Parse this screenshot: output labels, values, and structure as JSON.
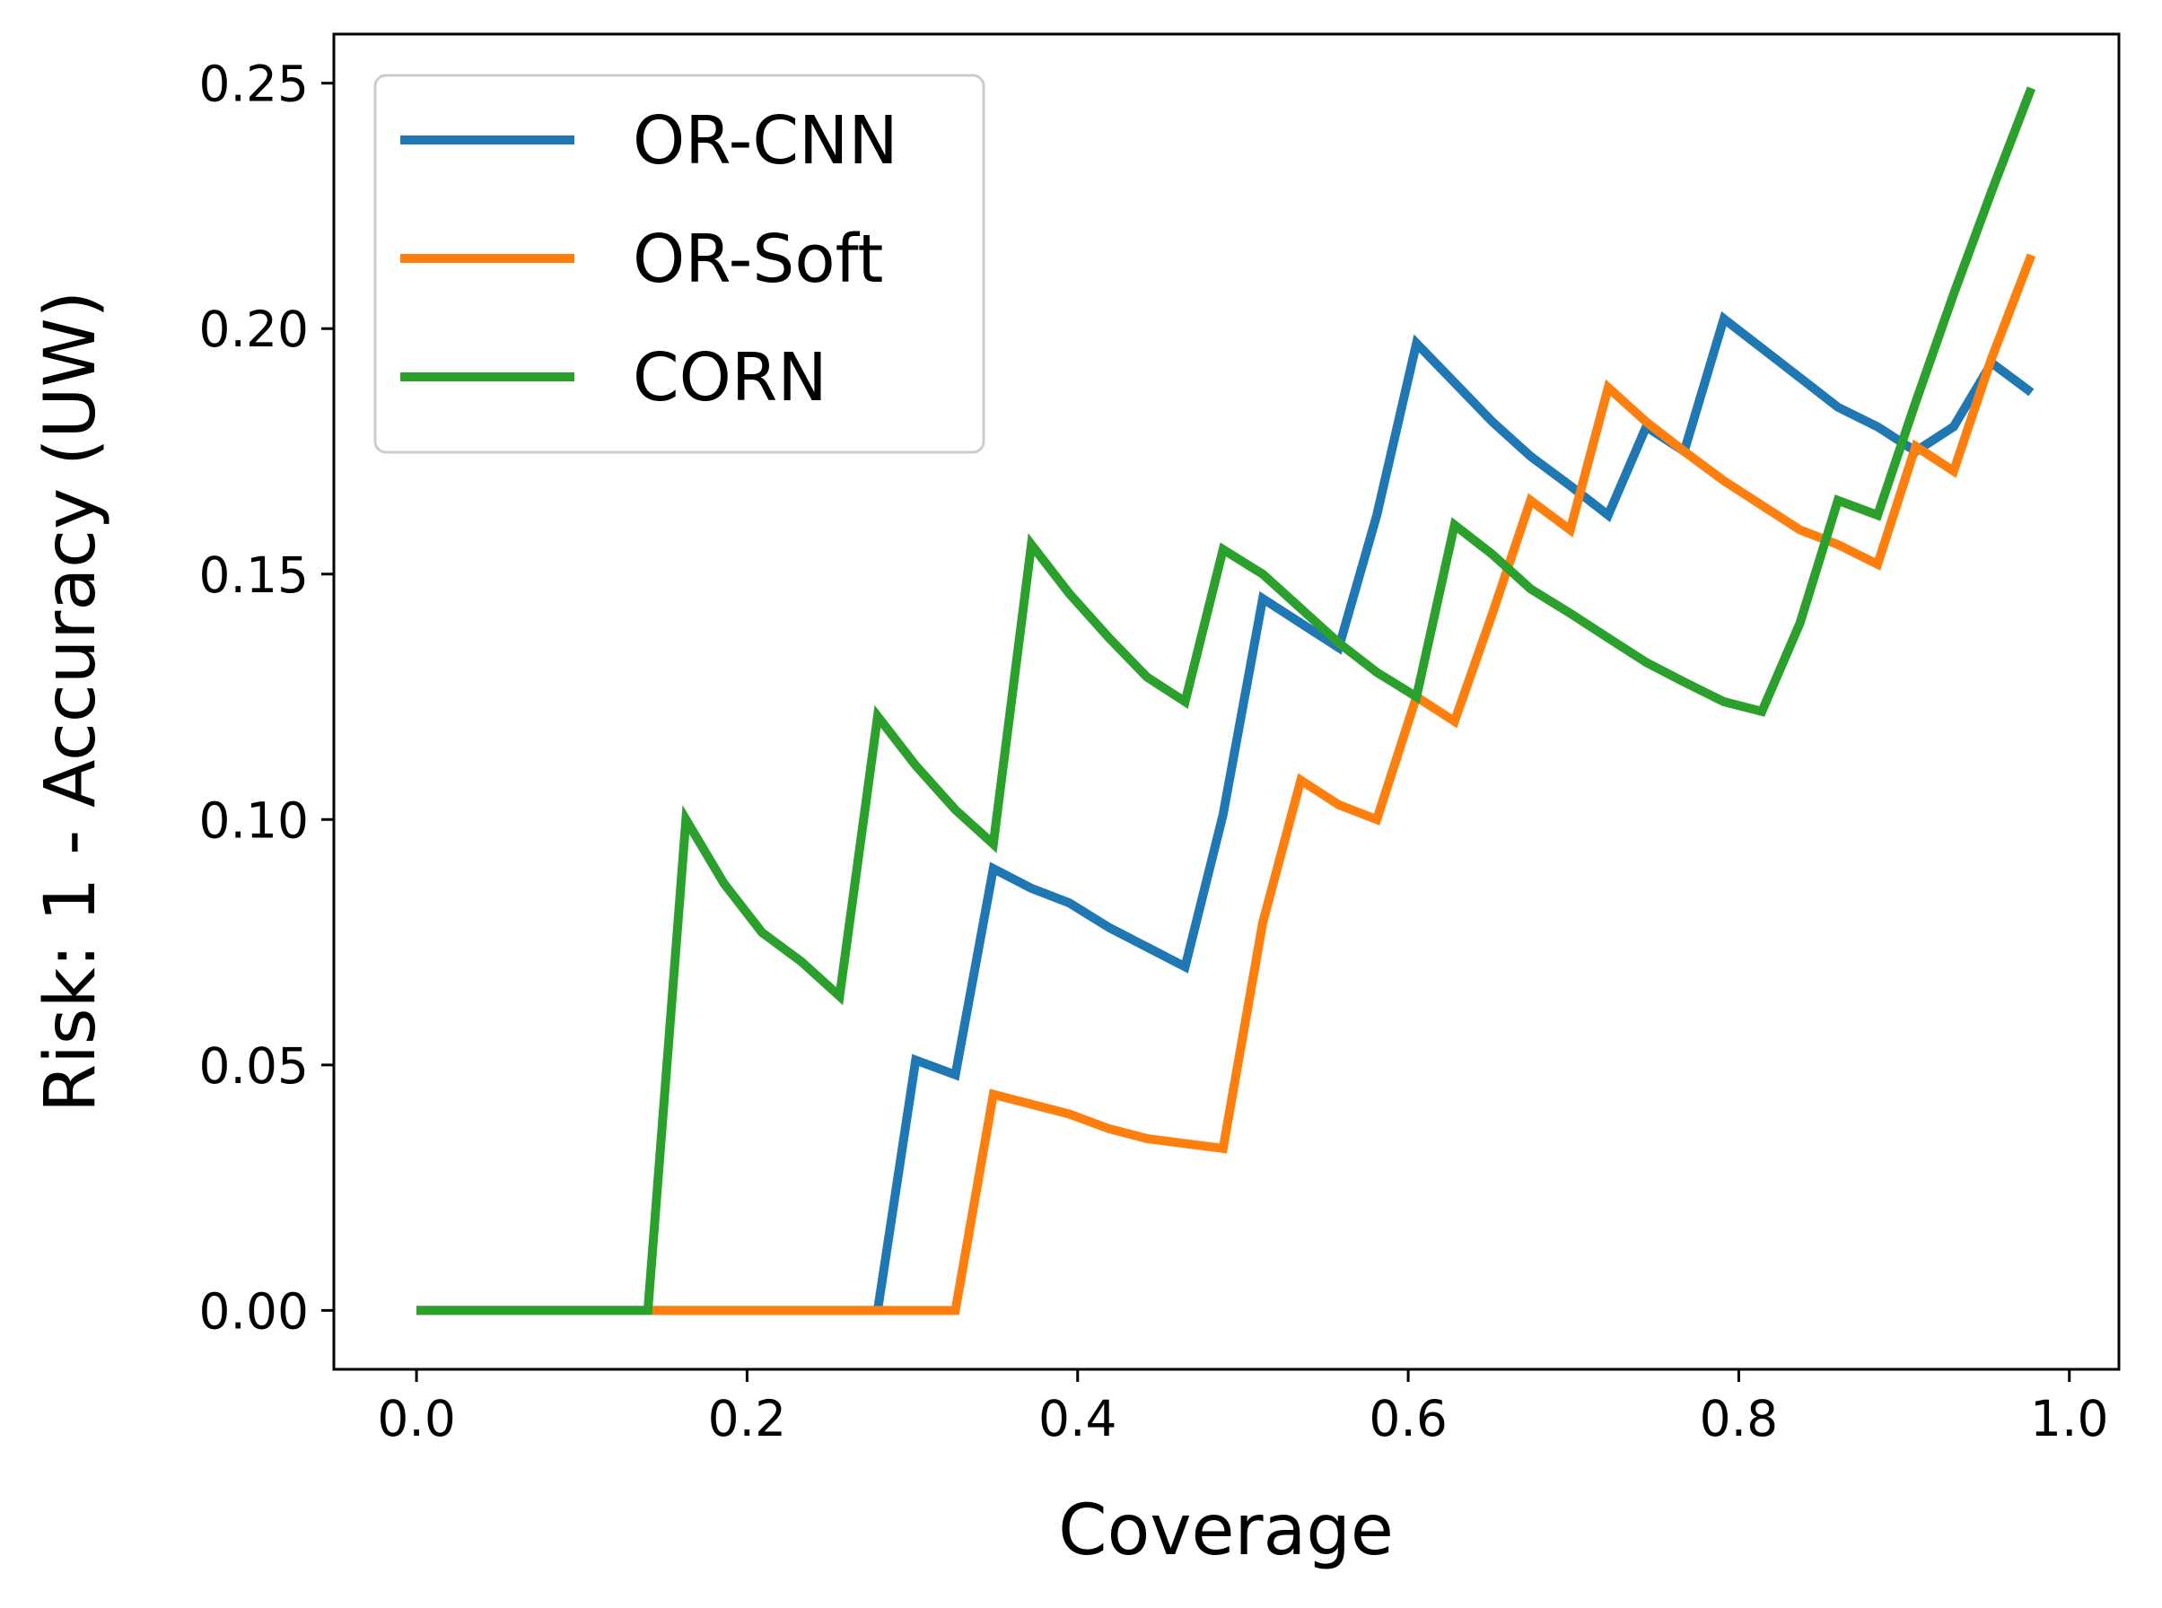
{
  "chart_data": {
    "type": "line",
    "title": "",
    "xlabel": "Coverage",
    "ylabel": "Risk: 1 - Accuracy (UW)",
    "xlim": [
      -0.05,
      1.03
    ],
    "ylim": [
      -0.012,
      0.26
    ],
    "xticks": [
      0.0,
      0.2,
      0.4,
      0.6,
      0.8,
      1.0
    ],
    "xtick_labels": [
      "0.0",
      "0.2",
      "0.4",
      "0.6",
      "0.8",
      "1.0"
    ],
    "yticks": [
      0.0,
      0.05,
      0.1,
      0.15,
      0.2,
      0.25
    ],
    "ytick_labels": [
      "0.00",
      "0.05",
      "0.10",
      "0.15",
      "0.20",
      "0.25"
    ],
    "grid": false,
    "legend_position": "top-left",
    "series": [
      {
        "name": "OR-CNN",
        "color": "#1f77b4",
        "x": [
          0.0,
          0.279,
          0.302,
          0.326,
          0.349,
          0.372,
          0.395,
          0.419,
          0.442,
          0.465,
          0.488,
          0.512,
          0.535,
          0.558,
          0.581,
          0.605,
          0.628,
          0.651,
          0.674,
          0.698,
          0.721,
          0.744,
          0.767,
          0.791,
          0.814,
          0.837,
          0.86,
          0.884,
          0.907,
          0.93,
          0.953,
          0.977
        ],
        "y": [
          0.0,
          0.0,
          0.051,
          0.048,
          0.09,
          0.086,
          0.083,
          0.078,
          0.074,
          0.07,
          0.101,
          0.145,
          0.14,
          0.135,
          0.162,
          0.197,
          0.189,
          0.181,
          0.174,
          0.168,
          0.162,
          0.18,
          0.175,
          0.202,
          0.196,
          0.19,
          0.184,
          0.18,
          0.175,
          0.18,
          0.193,
          0.187
        ]
      },
      {
        "name": "OR-Soft",
        "color": "#ff7f0e",
        "x": [
          0.0,
          0.326,
          0.349,
          0.372,
          0.395,
          0.419,
          0.442,
          0.465,
          0.488,
          0.512,
          0.535,
          0.558,
          0.581,
          0.605,
          0.628,
          0.651,
          0.674,
          0.698,
          0.721,
          0.744,
          0.767,
          0.791,
          0.814,
          0.837,
          0.86,
          0.884,
          0.907,
          0.93,
          0.953,
          0.977
        ],
        "y": [
          0.0,
          0.0,
          0.044,
          0.042,
          0.04,
          0.037,
          0.035,
          0.034,
          0.033,
          0.079,
          0.108,
          0.103,
          0.1,
          0.125,
          0.12,
          0.142,
          0.165,
          0.159,
          0.188,
          0.181,
          0.175,
          0.169,
          0.164,
          0.159,
          0.156,
          0.152,
          0.176,
          0.171,
          0.194,
          0.215
        ]
      },
      {
        "name": "CORN",
        "color": "#2ca02c",
        "x": [
          0.0,
          0.14,
          0.163,
          0.186,
          0.209,
          0.233,
          0.256,
          0.279,
          0.302,
          0.326,
          0.349,
          0.372,
          0.395,
          0.419,
          0.442,
          0.465,
          0.488,
          0.512,
          0.535,
          0.558,
          0.581,
          0.605,
          0.628,
          0.651,
          0.674,
          0.698,
          0.721,
          0.744,
          0.767,
          0.791,
          0.814,
          0.837,
          0.86,
          0.884,
          0.907,
          0.93,
          0.953,
          0.977
        ],
        "y": [
          0.0,
          0.0,
          0.1,
          0.087,
          0.077,
          0.071,
          0.064,
          0.121,
          0.111,
          0.102,
          0.095,
          0.156,
          0.146,
          0.137,
          0.129,
          0.124,
          0.155,
          0.15,
          0.143,
          0.136,
          0.13,
          0.125,
          0.16,
          0.154,
          0.147,
          0.142,
          0.137,
          0.132,
          0.128,
          0.124,
          0.122,
          0.14,
          0.165,
          0.162,
          0.185,
          0.207,
          0.228,
          0.249
        ]
      }
    ]
  }
}
